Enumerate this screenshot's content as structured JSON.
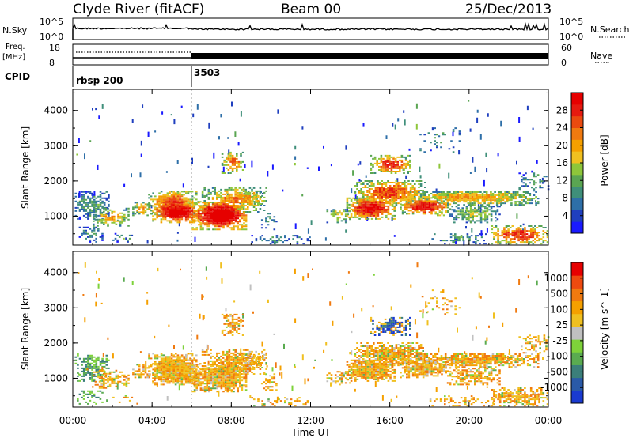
{
  "header": {
    "station": "Clyde River (fitACF)",
    "beam": "Beam 00",
    "date": "25/Dec/2013"
  },
  "top_panels": {
    "nsky": {
      "label": "N.Sky",
      "tick_top": "10^5",
      "tick_bottom": "10^0"
    },
    "nsearch": {
      "label": "N.Search",
      "tick_top": "10^5",
      "tick_bottom": "10^0"
    },
    "freq": {
      "label_1": "Freq.",
      "label_2": "[MHz]",
      "tick_top": "18",
      "tick_bottom": "8"
    },
    "nave": {
      "label": "Nave",
      "tick_top": "60",
      "tick_bottom": "0"
    },
    "cpid": {
      "label": "CPID",
      "segments": [
        {
          "start_hour": 0,
          "text": "rbsp 200"
        },
        {
          "start_hour": 6,
          "text": "3503"
        }
      ]
    }
  },
  "chart_data": [
    {
      "type": "heatmap",
      "name": "power-panel",
      "ylabel": "Slant Range [km]",
      "yticks": [
        "1000",
        "2000",
        "3000",
        "4000"
      ],
      "ylim": [
        180,
        4600
      ],
      "x_range_hours": [
        0,
        24
      ],
      "colorbar": {
        "label": "Power [dB]",
        "ticks": [
          "4",
          "8",
          "12",
          "16",
          "20",
          "24",
          "28"
        ],
        "colors": [
          "#1a1aff",
          "#1f3fbf",
          "#2e6fa8",
          "#3f8f7a",
          "#5aa552",
          "#8ec63a",
          "#f0c020",
          "#f5a000",
          "#f07a10",
          "#ea4a10",
          "#e61a10",
          "#e60000"
        ]
      }
    },
    {
      "type": "heatmap",
      "name": "velocity-panel",
      "ylabel": "Slant Range [km]",
      "yticks": [
        "1000",
        "2000",
        "3000",
        "4000"
      ],
      "ylim": [
        180,
        4600
      ],
      "x_range_hours": [
        0,
        24
      ],
      "colorbar": {
        "label": "Velocity [m s^-1]",
        "ticks": [
          "1000",
          "500",
          "100",
          "25",
          "-25",
          "-100",
          "-500",
          "-1000"
        ],
        "colors": [
          "#1a3ad0",
          "#2a5aa8",
          "#3b7f7a",
          "#5aab50",
          "#7ed23a",
          "#c0c0c0",
          "#f0c020",
          "#f5a000",
          "#f07a10",
          "#ee4a10",
          "#e60000"
        ]
      }
    }
  ],
  "time_axis": {
    "label": "Time UT",
    "ticks": [
      "00:00",
      "04:00",
      "08:00",
      "12:00",
      "16:00",
      "20:00",
      "00:00"
    ]
  }
}
